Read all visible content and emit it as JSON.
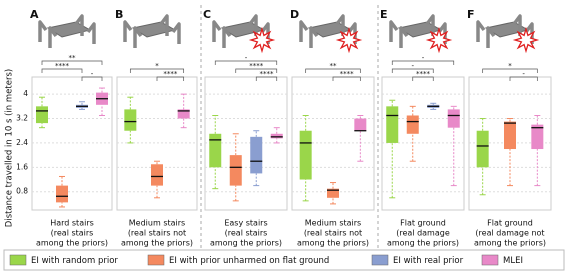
{
  "chart_data": {
    "type": "box",
    "y_label": "Distance travelled in 10 s (in meters)",
    "ylim": [
      0.2,
      4.3
    ],
    "yticks": [
      0.8,
      1.6,
      2.4,
      3.2,
      4.0
    ],
    "grid": true,
    "panel_letters": [
      "A",
      "B",
      "C",
      "D",
      "E",
      "F"
    ],
    "categories": [
      [
        "Hard stairs",
        "(real stairs",
        "among the priors)"
      ],
      [
        "Medium stairs",
        "(real stairs not",
        "among the priors)"
      ],
      [
        "Easy stairs",
        "(real stairs",
        "among the priors)"
      ],
      [
        "Medium stairs",
        "(real stairs not",
        "among the priors)"
      ],
      [
        "Flat ground",
        "(real damage",
        "among the priors)"
      ],
      [
        "Flat ground",
        "(real damage not",
        "among the priors)"
      ]
    ],
    "series": [
      {
        "name": "EI with random prior",
        "color": "#9ad64a",
        "values": [
          {
            "min": 2.9,
            "q1": 3.05,
            "median": 3.45,
            "q3": 3.6,
            "max": 3.9
          },
          {
            "min": 2.4,
            "q1": 2.8,
            "median": 3.1,
            "q3": 3.5,
            "max": 3.9
          },
          {
            "min": 0.9,
            "q1": 1.6,
            "median": 2.5,
            "q3": 2.7,
            "max": 3.3
          },
          {
            "min": 0.5,
            "q1": 1.2,
            "median": 2.4,
            "q3": 2.8,
            "max": 3.3
          },
          {
            "min": 0.6,
            "q1": 2.4,
            "median": 3.3,
            "q3": 3.6,
            "max": 3.8
          },
          {
            "min": 0.7,
            "q1": 1.6,
            "median": 2.3,
            "q3": 2.8,
            "max": 3.2
          }
        ]
      },
      {
        "name": "EI with prior unharmed on flat ground",
        "color": "#f4895f",
        "values": [
          {
            "min": 0.3,
            "q1": 0.45,
            "median": 0.65,
            "q3": 1.0,
            "max": 1.3
          },
          {
            "min": 0.6,
            "q1": 1.0,
            "median": 1.3,
            "q3": 1.7,
            "max": 1.8
          },
          {
            "min": 0.5,
            "q1": 1.0,
            "median": 1.6,
            "q3": 2.0,
            "max": 2.7
          },
          {
            "min": 0.4,
            "q1": 0.6,
            "median": 0.85,
            "q3": 0.9,
            "max": 1.1
          },
          {
            "min": 1.8,
            "q1": 2.7,
            "median": 3.1,
            "q3": 3.3,
            "max": 3.6
          },
          {
            "min": 1.0,
            "q1": 2.2,
            "median": 3.05,
            "q3": 3.1,
            "max": 3.2
          }
        ]
      },
      {
        "name": "EI with real prior",
        "color": "#8a9ed0",
        "values": [
          {
            "min": 3.5,
            "q1": 3.55,
            "median": 3.6,
            "q3": 3.65,
            "max": 3.75
          },
          null,
          {
            "min": 1.0,
            "q1": 1.4,
            "median": 1.8,
            "q3": 2.6,
            "max": 2.8
          },
          null,
          {
            "min": 3.5,
            "q1": 3.55,
            "median": 3.6,
            "q3": 3.65,
            "max": 3.7
          },
          null
        ]
      },
      {
        "name": "MLEI",
        "color": "#e889c8",
        "values": [
          {
            "min": 3.3,
            "q1": 3.65,
            "median": 3.85,
            "q3": 4.05,
            "max": 4.2
          },
          {
            "min": 2.9,
            "q1": 3.2,
            "median": 3.45,
            "q3": 3.5,
            "max": 4.0
          },
          {
            "min": 2.4,
            "q1": 2.55,
            "median": 2.6,
            "q3": 2.7,
            "max": 2.9
          },
          {
            "min": 1.8,
            "q1": 2.8,
            "median": 2.8,
            "q3": 3.2,
            "max": 3.3
          },
          {
            "min": 1.0,
            "q1": 2.9,
            "median": 3.3,
            "q3": 3.5,
            "max": 3.6
          },
          {
            "min": 1.0,
            "q1": 2.2,
            "median": 2.9,
            "q3": 3.0,
            "max": 3.3
          }
        ]
      }
    ],
    "significance": [
      [
        {
          "text": "**",
          "pair": [
            0,
            3
          ]
        },
        {
          "text": "****",
          "pair": [
            0,
            2
          ]
        },
        {
          "text": "-",
          "pair": [
            2,
            3
          ]
        }
      ],
      [
        {
          "text": "*",
          "pair": [
            0,
            3
          ]
        },
        {
          "text": "****",
          "pair": [
            1,
            3
          ]
        }
      ],
      [
        {
          "text": "-",
          "pair": [
            0,
            3
          ]
        },
        {
          "text": "****",
          "pair": [
            1,
            3
          ]
        },
        {
          "text": "****",
          "pair": [
            2,
            3
          ]
        }
      ],
      [
        {
          "text": "**",
          "pair": [
            0,
            3
          ]
        },
        {
          "text": "****",
          "pair": [
            1,
            3
          ]
        }
      ],
      [
        {
          "text": "-",
          "pair": [
            0,
            3
          ]
        },
        {
          "text": "-",
          "pair": [
            0,
            2
          ]
        },
        {
          "text": "****",
          "pair": [
            1,
            2
          ]
        }
      ],
      [
        {
          "text": "*",
          "pair": [
            0,
            3
          ]
        },
        {
          "text": "-",
          "pair": [
            1,
            3
          ]
        }
      ]
    ]
  }
}
